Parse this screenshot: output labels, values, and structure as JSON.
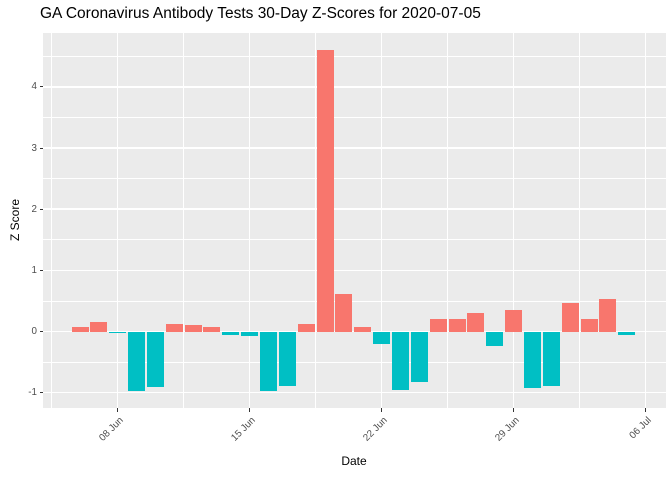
{
  "title": "GA Coronavirus Antibody Tests 30-Day Z-Scores for 2020-07-05",
  "chart_data": {
    "type": "bar",
    "title": "GA Coronavirus Antibody Tests 30-Day Z-Scores for 2020-07-05",
    "xlabel": "Date",
    "ylabel": "Z Score",
    "x": [
      "2020-06-06",
      "2020-06-07",
      "2020-06-08",
      "2020-06-09",
      "2020-06-10",
      "2020-06-11",
      "2020-06-12",
      "2020-06-13",
      "2020-06-14",
      "2020-06-15",
      "2020-06-16",
      "2020-06-17",
      "2020-06-18",
      "2020-06-19",
      "2020-06-20",
      "2020-06-21",
      "2020-06-22",
      "2020-06-23",
      "2020-06-24",
      "2020-06-25",
      "2020-06-26",
      "2020-06-27",
      "2020-06-28",
      "2020-06-29",
      "2020-06-30",
      "2020-07-01",
      "2020-07-02",
      "2020-07-03",
      "2020-07-04",
      "2020-07-05"
    ],
    "values": [
      0.08,
      0.15,
      -0.02,
      -0.97,
      -0.9,
      0.13,
      0.11,
      0.07,
      -0.05,
      -0.08,
      -0.97,
      -0.89,
      0.13,
      4.6,
      0.61,
      0.07,
      -0.2,
      -0.95,
      -0.83,
      0.2,
      0.2,
      0.31,
      -0.23,
      0.36,
      -0.92,
      -0.89,
      0.47,
      0.21,
      0.53,
      -0.05
    ],
    "x_ticks": [
      {
        "label": "08 Jun",
        "day": 2
      },
      {
        "label": "15 Jun",
        "day": 9
      },
      {
        "label": "22 Jun",
        "day": 16
      },
      {
        "label": "29 Jun",
        "day": 23
      },
      {
        "label": "06 Jul",
        "day": 30
      }
    ],
    "y_ticks": [
      -1,
      0,
      1,
      2,
      3,
      4
    ],
    "ylim": [
      -1.25,
      4.88
    ],
    "grid": true,
    "legend": "none",
    "colors": {
      "positive": "#F8766D",
      "negative": "#00BFC4",
      "panel_background": "#EBEBEB",
      "gridline": "#FFFFFF",
      "tick_text": "#4D4D4D",
      "axis_text": "#000000"
    }
  }
}
